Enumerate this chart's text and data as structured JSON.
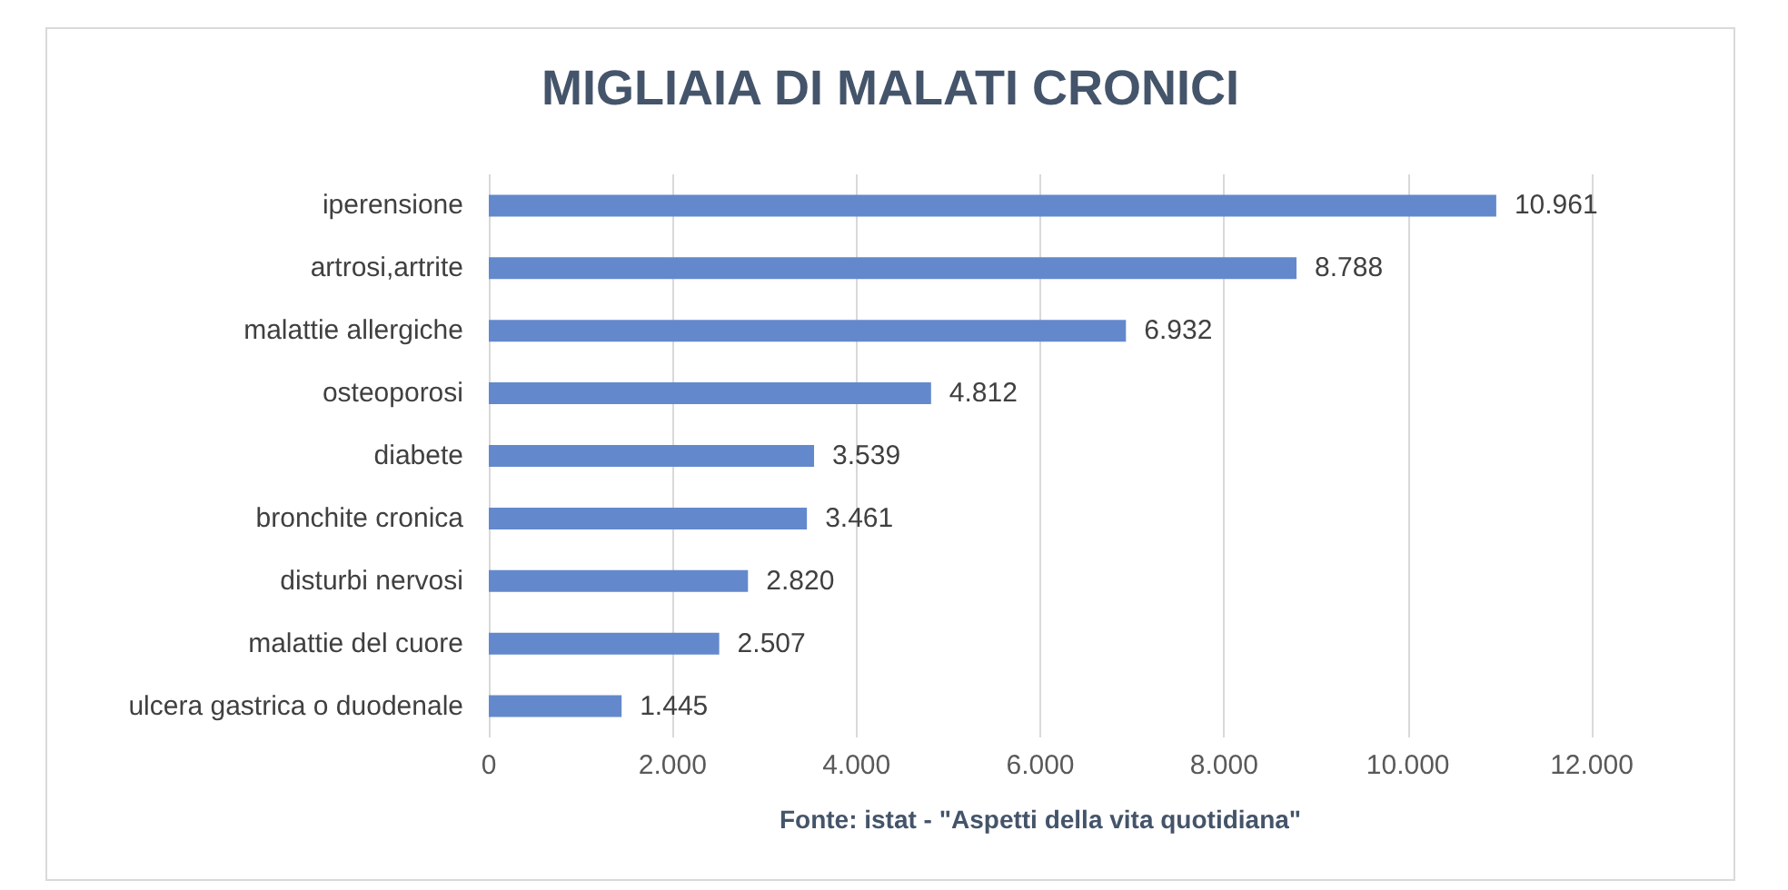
{
  "chart_data": {
    "type": "bar",
    "orientation": "horizontal",
    "title": "MIGLIAIA DI MALATI CRONICI",
    "xlabel": "Fonte: istat - \"Aspetti della vita quotidiana\"",
    "categories": [
      "iperensione",
      "artrosi,artrite",
      "malattie allergiche",
      "osteoporosi",
      "diabete",
      "bronchite cronica",
      "disturbi nervosi",
      "malattie del cuore",
      "ulcera gastrica o duodenale"
    ],
    "values": [
      10961,
      8788,
      6932,
      4812,
      3539,
      3461,
      2820,
      2507,
      1445
    ],
    "value_labels": [
      "10.961",
      "8.788",
      "6.932",
      "4.812",
      "3.539",
      "3.461",
      "2.820",
      "2.507",
      "1.445"
    ],
    "color": "#6389cc",
    "xlim": [
      0,
      12000
    ],
    "xticks": [
      0,
      {
        "value": 2000,
        "label": "2.000"
      },
      {
        "value": 4000,
        "label": "4.000"
      },
      {
        "value": 6000,
        "label": "6.000"
      },
      {
        "value": 8000,
        "label": "8.000"
      },
      {
        "value": 10000,
        "label": "10.000"
      },
      {
        "value": 12000,
        "label": "12.000"
      }
    ],
    "grid": "x"
  }
}
